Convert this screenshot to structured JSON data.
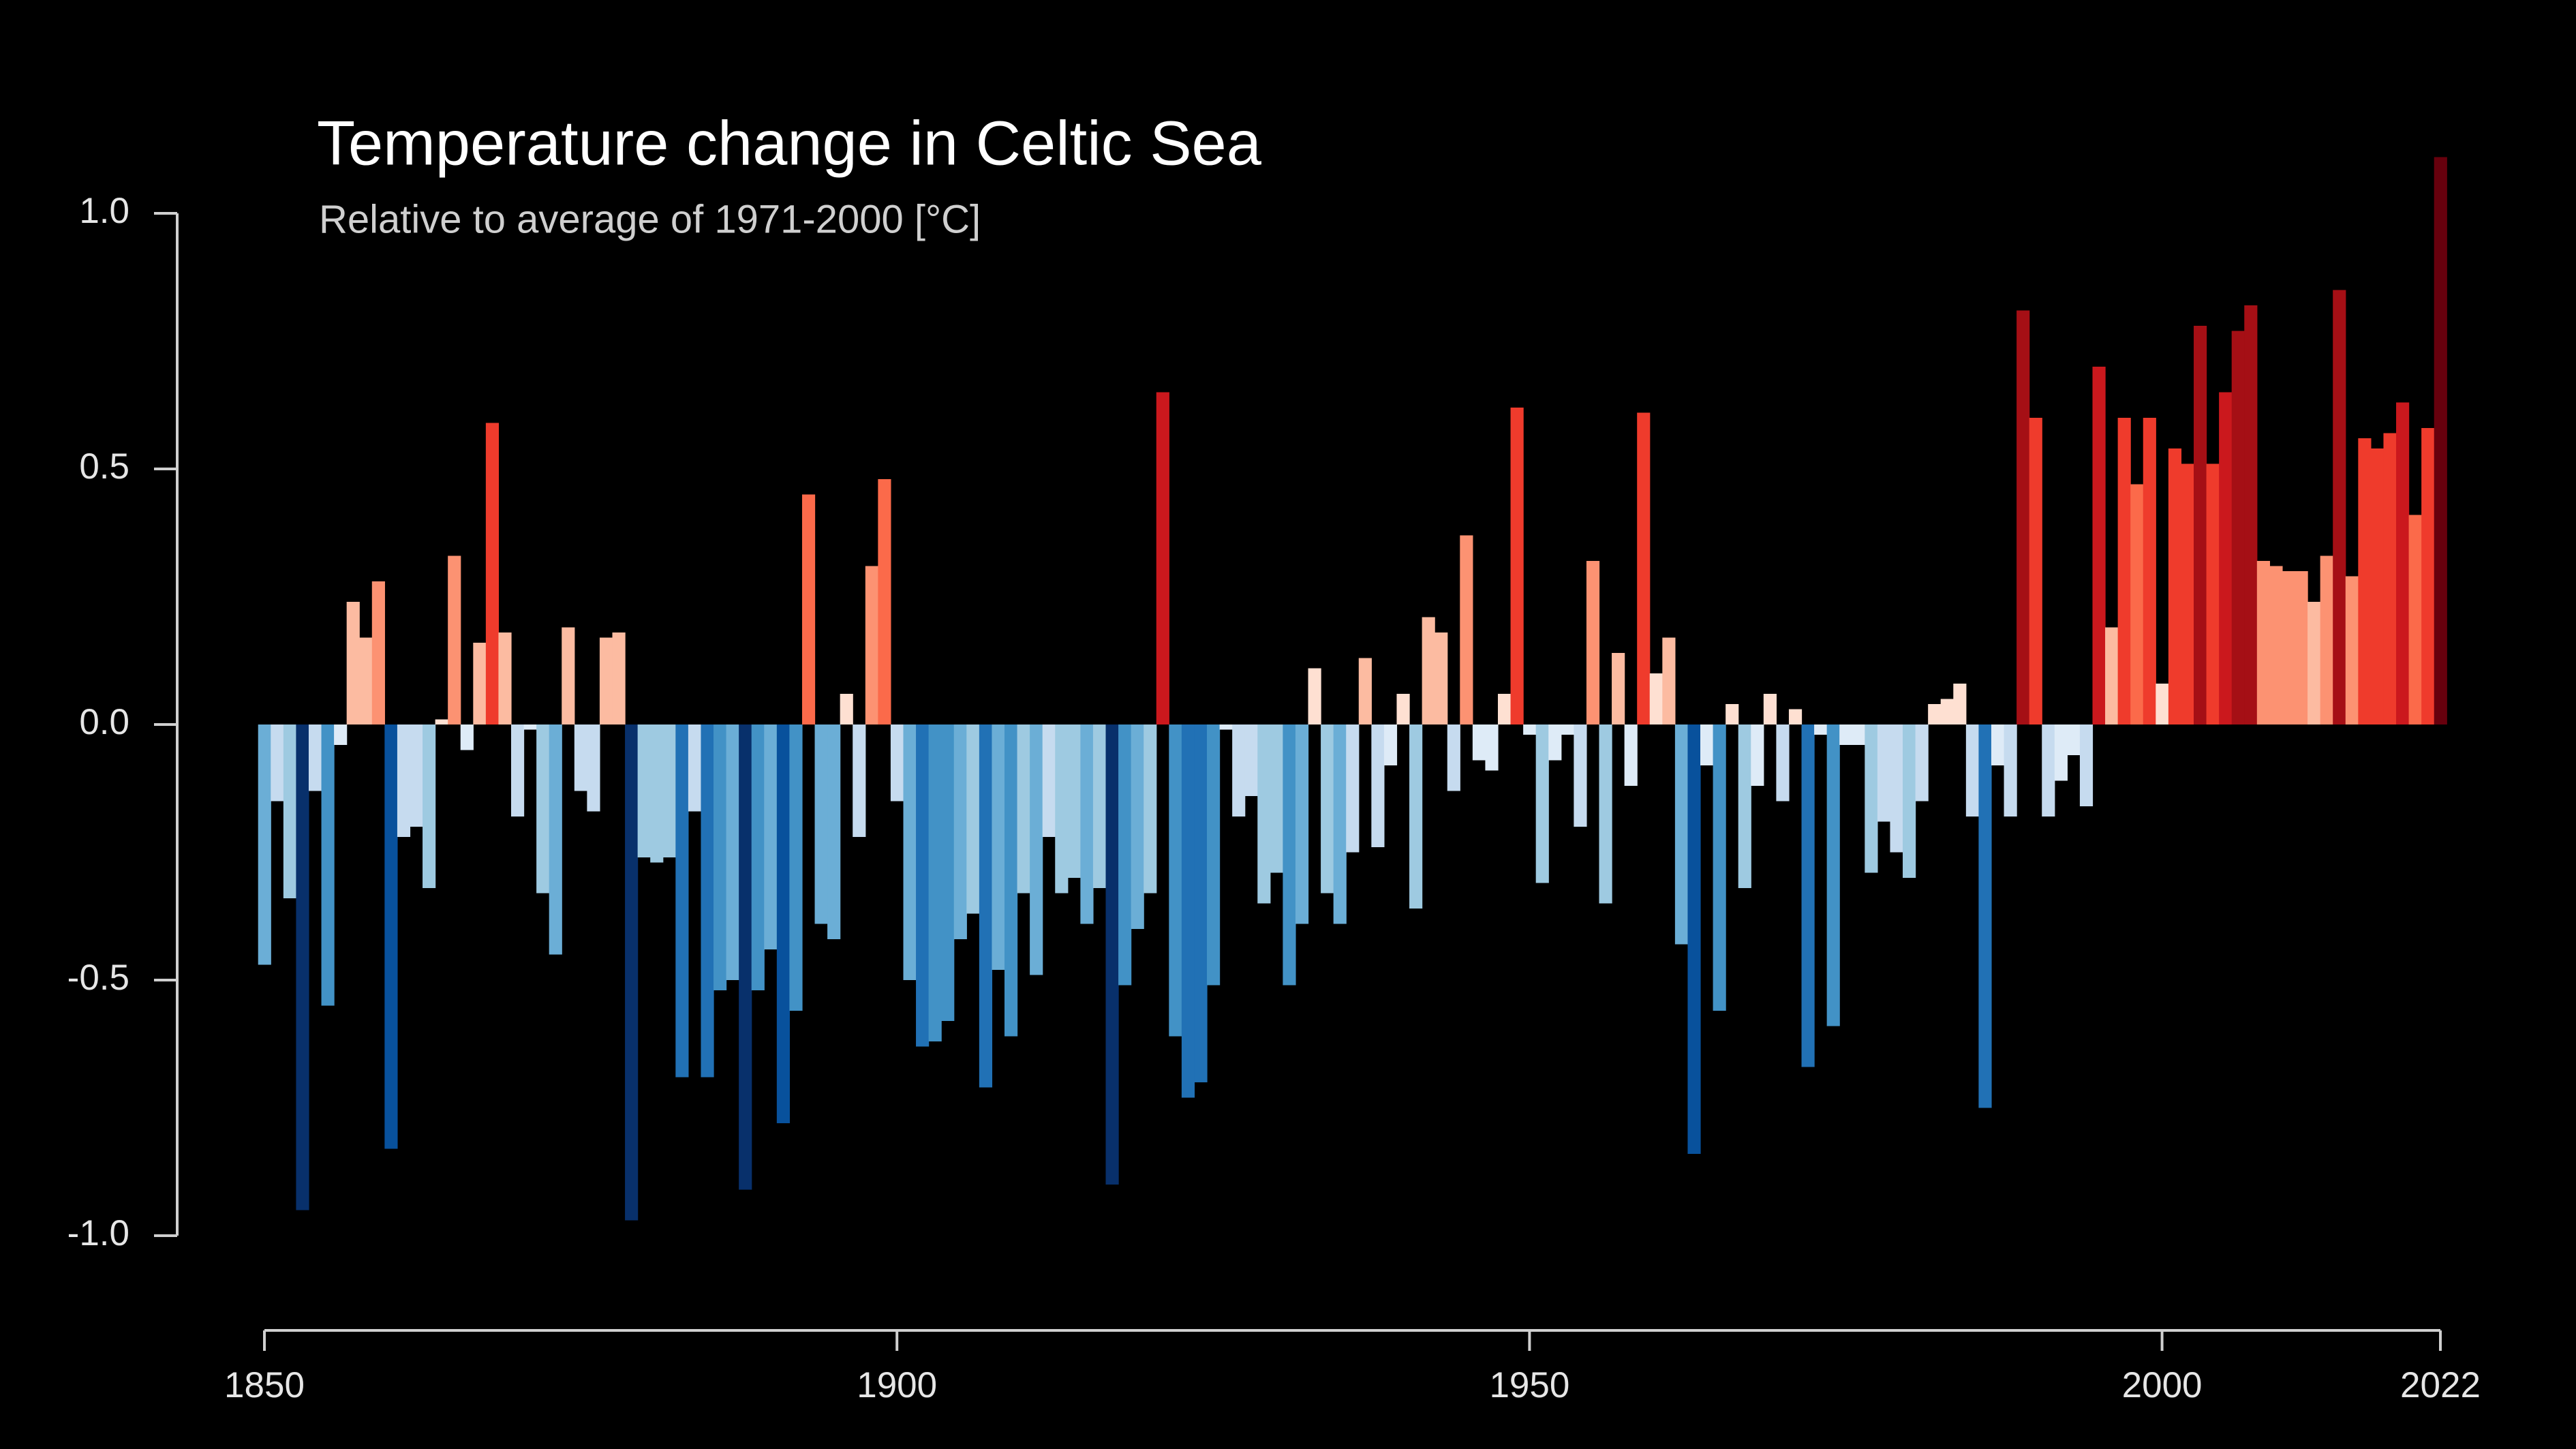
{
  "chart_data": {
    "type": "bar",
    "title": "Temperature change in Celtic Sea",
    "subtitle": "Relative to average of 1971-2000  [°C]",
    "x": [
      1850,
      1851,
      1852,
      1853,
      1854,
      1855,
      1856,
      1857,
      1858,
      1859,
      1860,
      1861,
      1862,
      1863,
      1864,
      1865,
      1866,
      1867,
      1868,
      1869,
      1870,
      1871,
      1872,
      1873,
      1874,
      1875,
      1876,
      1877,
      1878,
      1879,
      1880,
      1881,
      1882,
      1883,
      1884,
      1885,
      1886,
      1887,
      1888,
      1889,
      1890,
      1891,
      1892,
      1893,
      1894,
      1895,
      1896,
      1897,
      1898,
      1899,
      1900,
      1901,
      1902,
      1903,
      1904,
      1905,
      1906,
      1907,
      1908,
      1909,
      1910,
      1911,
      1912,
      1913,
      1914,
      1915,
      1916,
      1917,
      1918,
      1919,
      1920,
      1921,
      1922,
      1923,
      1924,
      1925,
      1926,
      1927,
      1928,
      1929,
      1930,
      1931,
      1932,
      1933,
      1934,
      1935,
      1936,
      1937,
      1938,
      1939,
      1940,
      1941,
      1942,
      1943,
      1944,
      1945,
      1946,
      1947,
      1948,
      1949,
      1950,
      1951,
      1952,
      1953,
      1954,
      1955,
      1956,
      1957,
      1958,
      1959,
      1960,
      1961,
      1962,
      1963,
      1964,
      1965,
      1966,
      1967,
      1968,
      1969,
      1970,
      1971,
      1972,
      1973,
      1974,
      1975,
      1976,
      1977,
      1978,
      1979,
      1980,
      1981,
      1982,
      1983,
      1984,
      1985,
      1986,
      1987,
      1988,
      1989,
      1990,
      1991,
      1992,
      1993,
      1994,
      1995,
      1996,
      1997,
      1998,
      1999,
      2000,
      2001,
      2002,
      2003,
      2004,
      2005,
      2006,
      2007,
      2008,
      2009,
      2010,
      2011,
      2012,
      2013,
      2014,
      2015,
      2016,
      2017,
      2018,
      2019,
      2020,
      2021,
      2022
    ],
    "values": [
      -0.47,
      -0.15,
      -0.34,
      -0.95,
      -0.13,
      -0.55,
      -0.04,
      0.24,
      0.17,
      0.28,
      -0.83,
      -0.22,
      -0.2,
      -0.32,
      0.01,
      0.33,
      -0.05,
      0.16,
      0.59,
      0.18,
      -0.18,
      -0.01,
      -0.33,
      -0.45,
      0.19,
      -0.13,
      -0.17,
      0.17,
      0.18,
      -0.97,
      -0.26,
      -0.27,
      -0.26,
      -0.69,
      -0.17,
      -0.69,
      -0.52,
      -0.5,
      -0.91,
      -0.52,
      -0.44,
      -0.78,
      -0.56,
      0.45,
      -0.39,
      -0.42,
      0.06,
      -0.22,
      0.31,
      0.48,
      -0.15,
      -0.5,
      -0.63,
      -0.62,
      -0.58,
      -0.42,
      -0.37,
      -0.71,
      -0.48,
      -0.61,
      -0.33,
      -0.49,
      -0.22,
      -0.33,
      -0.3,
      -0.39,
      -0.32,
      -0.9,
      -0.51,
      -0.4,
      -0.33,
      0.65,
      -0.61,
      -0.73,
      -0.7,
      -0.51,
      -0.01,
      -0.18,
      -0.14,
      -0.35,
      -0.29,
      -0.51,
      -0.39,
      0.11,
      -0.33,
      -0.39,
      -0.25,
      0.13,
      -0.24,
      -0.08,
      0.06,
      -0.36,
      0.21,
      0.18,
      -0.13,
      0.37,
      -0.07,
      -0.09,
      0.06,
      0.62,
      -0.02,
      -0.31,
      -0.07,
      -0.02,
      -0.2,
      0.32,
      -0.35,
      0.14,
      -0.12,
      0.61,
      0.1,
      0.17,
      -0.43,
      -0.84,
      -0.08,
      -0.56,
      0.04,
      -0.32,
      -0.12,
      0.06,
      -0.15,
      0.03,
      -0.67,
      -0.02,
      -0.59,
      -0.04,
      -0.04,
      -0.29,
      -0.19,
      -0.25,
      -0.3,
      -0.15,
      0.04,
      0.05,
      0.08,
      -0.18,
      -0.75,
      -0.08,
      -0.18,
      0.81,
      0.6,
      -0.18,
      -0.11,
      -0.06,
      -0.16,
      0.7,
      0.19,
      0.6,
      0.47,
      0.6,
      0.08,
      0.54,
      0.51,
      0.78,
      0.51,
      0.65,
      0.77,
      0.82,
      0.32,
      0.31,
      0.3,
      0.3,
      0.24,
      0.33,
      0.85,
      0.29,
      0.56,
      0.54,
      0.57,
      0.63,
      0.41,
      0.58,
      1.11
    ],
    "colormap": [
      "#08306b",
      "#08519c",
      "#2171b5",
      "#4292c6",
      "#6baed6",
      "#9ecae1",
      "#c6dbef",
      "#deebf7",
      "#fee0d2",
      "#fcbba1",
      "#fc9272",
      "#fb6a4a",
      "#ef3b2c",
      "#cb181d",
      "#a50f15",
      "#67000d"
    ],
    "xlim": [
      1850,
      2022
    ],
    "xticks": [
      1850,
      1900,
      1950,
      2000,
      2022
    ],
    "ylim": [
      -1.2,
      1.2
    ],
    "yticks": [
      {
        "value": 1.0,
        "label": "1.0"
      },
      {
        "value": 0.5,
        "label": "0.5"
      },
      {
        "value": 0,
        "label": "0.0"
      },
      {
        "value": -0.5,
        "label": "-0.5"
      },
      {
        "value": -1.0,
        "label": "-1.0"
      }
    ],
    "grid": false
  }
}
